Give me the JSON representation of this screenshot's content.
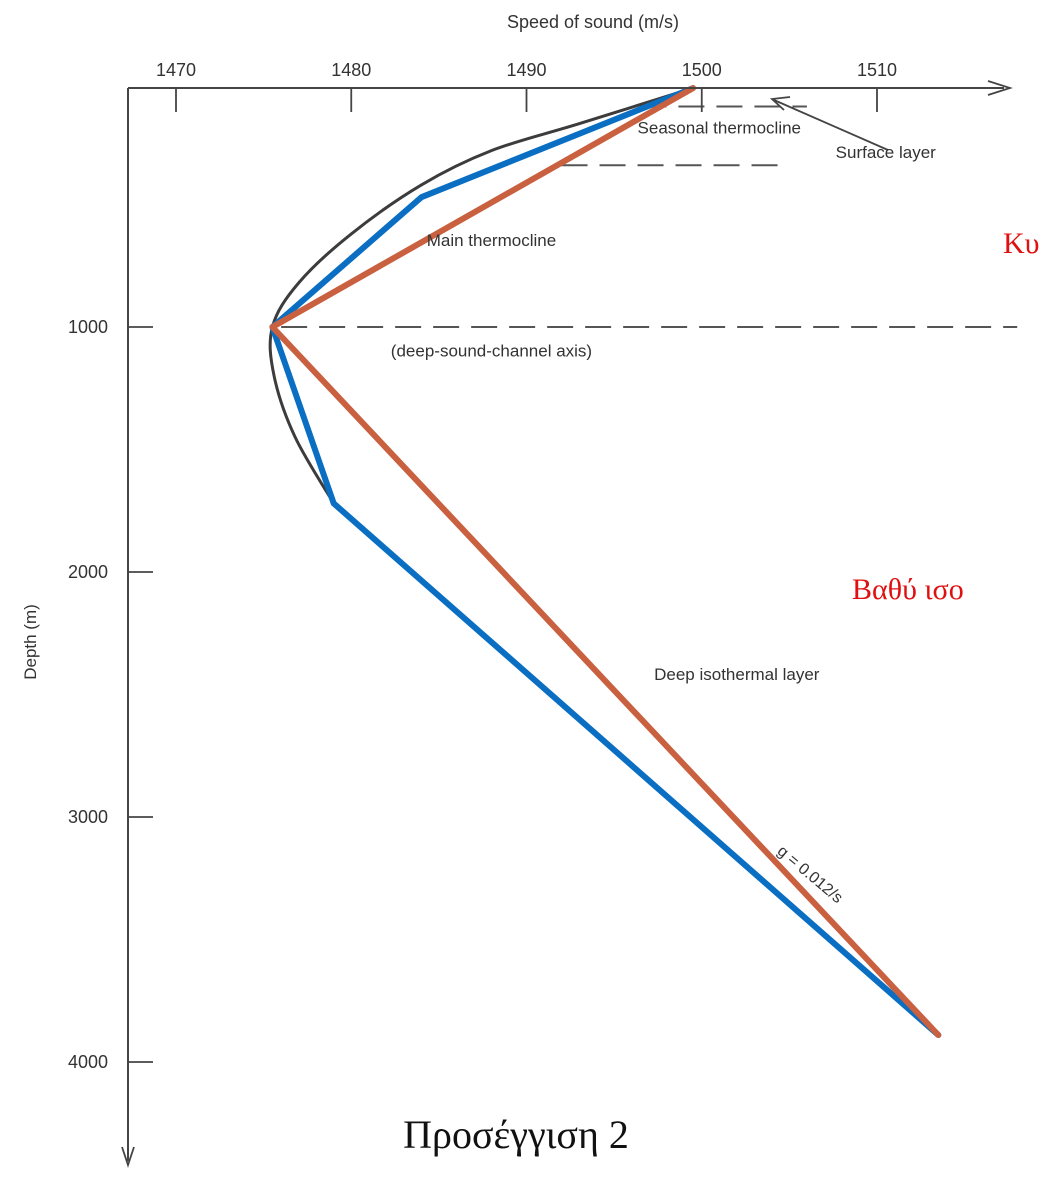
{
  "chart_data": {
    "type": "line",
    "xlabel": "Speed of sound (m/s)",
    "ylabel": "Depth (m)",
    "x_ticks": [
      1470,
      1480,
      1490,
      1500,
      1510
    ],
    "y_ticks": [
      1000,
      2000,
      3000,
      4000
    ],
    "xlim": [
      1465,
      1518
    ],
    "ylim": [
      0,
      4400
    ],
    "x_axis_position": "top",
    "y_axis_inverted": true,
    "grid": false,
    "series": [
      {
        "name": "",
        "role": "measured-profile",
        "color": "#3c3c3c",
        "points": [
          {
            "x": 1499.5,
            "y": 25
          },
          {
            "x": 1493,
            "y": 170
          },
          {
            "x": 1488,
            "y": 280
          },
          {
            "x": 1484,
            "y": 420
          },
          {
            "x": 1480,
            "y": 620
          },
          {
            "x": 1477,
            "y": 820
          },
          {
            "x": 1475.5,
            "y": 1000
          },
          {
            "x": 1475.6,
            "y": 1200
          },
          {
            "x": 1476.8,
            "y": 1450
          },
          {
            "x": 1479,
            "y": 1720
          }
        ]
      },
      {
        "name": "",
        "role": "three-segment-approximation",
        "color": "#0a6fc2",
        "points": [
          {
            "x": 1499.5,
            "y": 25
          },
          {
            "x": 1484,
            "y": 470
          },
          {
            "x": 1475.5,
            "y": 1000
          },
          {
            "x": 1479,
            "y": 1720
          },
          {
            "x": 1513.5,
            "y": 3890
          }
        ]
      },
      {
        "name": "",
        "role": "two-segment-approximation",
        "color": "#c9603f",
        "points": [
          {
            "x": 1499.5,
            "y": 25
          },
          {
            "x": 1475.5,
            "y": 1000
          },
          {
            "x": 1513.5,
            "y": 3890
          }
        ]
      }
    ],
    "dashed_lines": [
      {
        "y": 1000,
        "x_from": 1476,
        "x_to": 1518
      },
      {
        "y": 100,
        "x_from": 1496.5,
        "x_to": 1506
      },
      {
        "y": 340,
        "x_from": 1492,
        "x_to": 1505
      }
    ],
    "annotations": [
      {
        "text": "Seasonal thermocline",
        "x": 1501,
        "y": 210
      },
      {
        "text": "Surface layer",
        "x": 1510.5,
        "y": 310
      },
      {
        "text": "Main thermocline",
        "x": 1488,
        "y": 670
      },
      {
        "text": "(deep-sound-channel axis)",
        "x": 1488,
        "y": 1120
      },
      {
        "text": "Deep isothermal layer",
        "x": 1502,
        "y": 2440
      },
      {
        "text": "g = 0.0⁠12/s",
        "x": 1506,
        "y": 3250
      }
    ],
    "overlay_labels": [
      {
        "text": "Κυ",
        "color": "#e01010"
      },
      {
        "text": "Βαθύ ισο",
        "color": "#e01010"
      },
      {
        "text": "Προσέγγιση 2",
        "color": "#111111"
      }
    ]
  }
}
